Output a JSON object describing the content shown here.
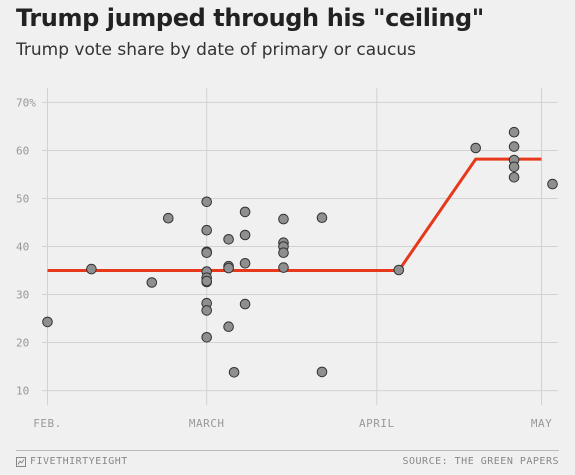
{
  "chart_data": {
    "type": "scatter",
    "title": "Trump jumped through his \"ceiling\"",
    "subtitle": "Trump vote share by date of primary or caucus",
    "y_ticks": [
      "70%",
      "60",
      "50",
      "40",
      "30",
      "20",
      "10"
    ],
    "y_tick_values": [
      70,
      60,
      50,
      40,
      30,
      20,
      10
    ],
    "ylim": [
      7,
      73
    ],
    "x_ticks": [
      "FEB.",
      "MARCH",
      "APRIL",
      "MAY"
    ],
    "x_tick_dates": [
      "2016-02-01",
      "2016-03-01",
      "2016-04-01",
      "2016-05-01"
    ],
    "xlim": [
      "2016-01-31",
      "2016-05-04"
    ],
    "grid": true,
    "points": [
      {
        "date": "2016-02-01",
        "share": 24.3
      },
      {
        "date": "2016-02-09",
        "share": 35.3
      },
      {
        "date": "2016-02-20",
        "share": 32.5
      },
      {
        "date": "2016-02-23",
        "share": 45.9
      },
      {
        "date": "2016-03-01",
        "share": 49.3
      },
      {
        "date": "2016-03-01",
        "share": 43.4
      },
      {
        "date": "2016-03-01",
        "share": 38.9
      },
      {
        "date": "2016-03-01",
        "share": 38.7
      },
      {
        "date": "2016-03-01",
        "share": 34.8
      },
      {
        "date": "2016-03-01",
        "share": 33.5
      },
      {
        "date": "2016-03-01",
        "share": 32.6
      },
      {
        "date": "2016-03-01",
        "share": 32.8
      },
      {
        "date": "2016-03-01",
        "share": 28.2
      },
      {
        "date": "2016-03-01",
        "share": 26.7
      },
      {
        "date": "2016-03-01",
        "share": 21.1
      },
      {
        "date": "2016-03-05",
        "share": 41.5
      },
      {
        "date": "2016-03-05",
        "share": 35.9
      },
      {
        "date": "2016-03-05",
        "share": 35.5
      },
      {
        "date": "2016-03-05",
        "share": 23.3
      },
      {
        "date": "2016-03-06",
        "share": 13.8
      },
      {
        "date": "2016-03-08",
        "share": 47.2
      },
      {
        "date": "2016-03-08",
        "share": 42.4
      },
      {
        "date": "2016-03-08",
        "share": 36.5
      },
      {
        "date": "2016-03-08",
        "share": 28.0
      },
      {
        "date": "2016-03-15",
        "share": 45.7
      },
      {
        "date": "2016-03-15",
        "share": 40.8
      },
      {
        "date": "2016-03-15",
        "share": 40.0
      },
      {
        "date": "2016-03-15",
        "share": 38.7
      },
      {
        "date": "2016-03-15",
        "share": 35.6
      },
      {
        "date": "2016-03-22",
        "share": 46.0
      },
      {
        "date": "2016-03-22",
        "share": 13.9
      },
      {
        "date": "2016-04-05",
        "share": 35.1
      },
      {
        "date": "2016-04-19",
        "share": 60.5
      },
      {
        "date": "2016-04-26",
        "share": 63.8
      },
      {
        "date": "2016-04-26",
        "share": 60.8
      },
      {
        "date": "2016-04-26",
        "share": 58.0
      },
      {
        "date": "2016-04-26",
        "share": 56.6
      },
      {
        "date": "2016-04-26",
        "share": 54.4
      },
      {
        "date": "2016-05-03",
        "share": 53.0
      }
    ],
    "ceiling_line": [
      {
        "date": "2016-02-01",
        "share": 35
      },
      {
        "date": "2016-04-05",
        "share": 35
      },
      {
        "date": "2016-04-19",
        "share": 58.2
      },
      {
        "date": "2016-05-01",
        "share": 58.2
      }
    ],
    "colors": {
      "point_fill": "#8f8f8f",
      "point_stroke": "#333333",
      "line": "#e8381c",
      "grid": "#d2d2d2",
      "background": "#f0f0f0"
    }
  },
  "footer": {
    "brand": "FIVETHIRTYEIGHT",
    "brand_icon": "fivethirtyeight-logo-icon",
    "source": "SOURCE: THE GREEN PAPERS"
  }
}
